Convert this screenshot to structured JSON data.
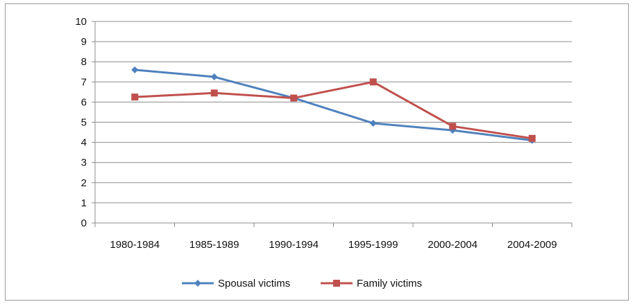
{
  "chart_data": {
    "type": "line",
    "title": "",
    "xlabel": "",
    "ylabel": "",
    "categories": [
      "1980-1984",
      "1985-1989",
      "1990-1994",
      "1995-1999",
      "2000-2004",
      "2004-2009"
    ],
    "ylim": [
      0,
      10
    ],
    "yticks": [
      "0",
      "1",
      "2",
      "3",
      "4",
      "5",
      "6",
      "7",
      "8",
      "9",
      "10"
    ],
    "grid": "horizontal",
    "legend_position": "bottom",
    "series": [
      {
        "name": "Spousal victims",
        "values": [
          7.6,
          7.25,
          6.2,
          4.95,
          4.6,
          4.1
        ],
        "color": "#4f81bd",
        "marker": "diamond"
      },
      {
        "name": "Family victims",
        "values": [
          6.25,
          6.45,
          6.2,
          7.0,
          4.8,
          4.2
        ],
        "color": "#c0504d",
        "marker": "square"
      }
    ]
  }
}
